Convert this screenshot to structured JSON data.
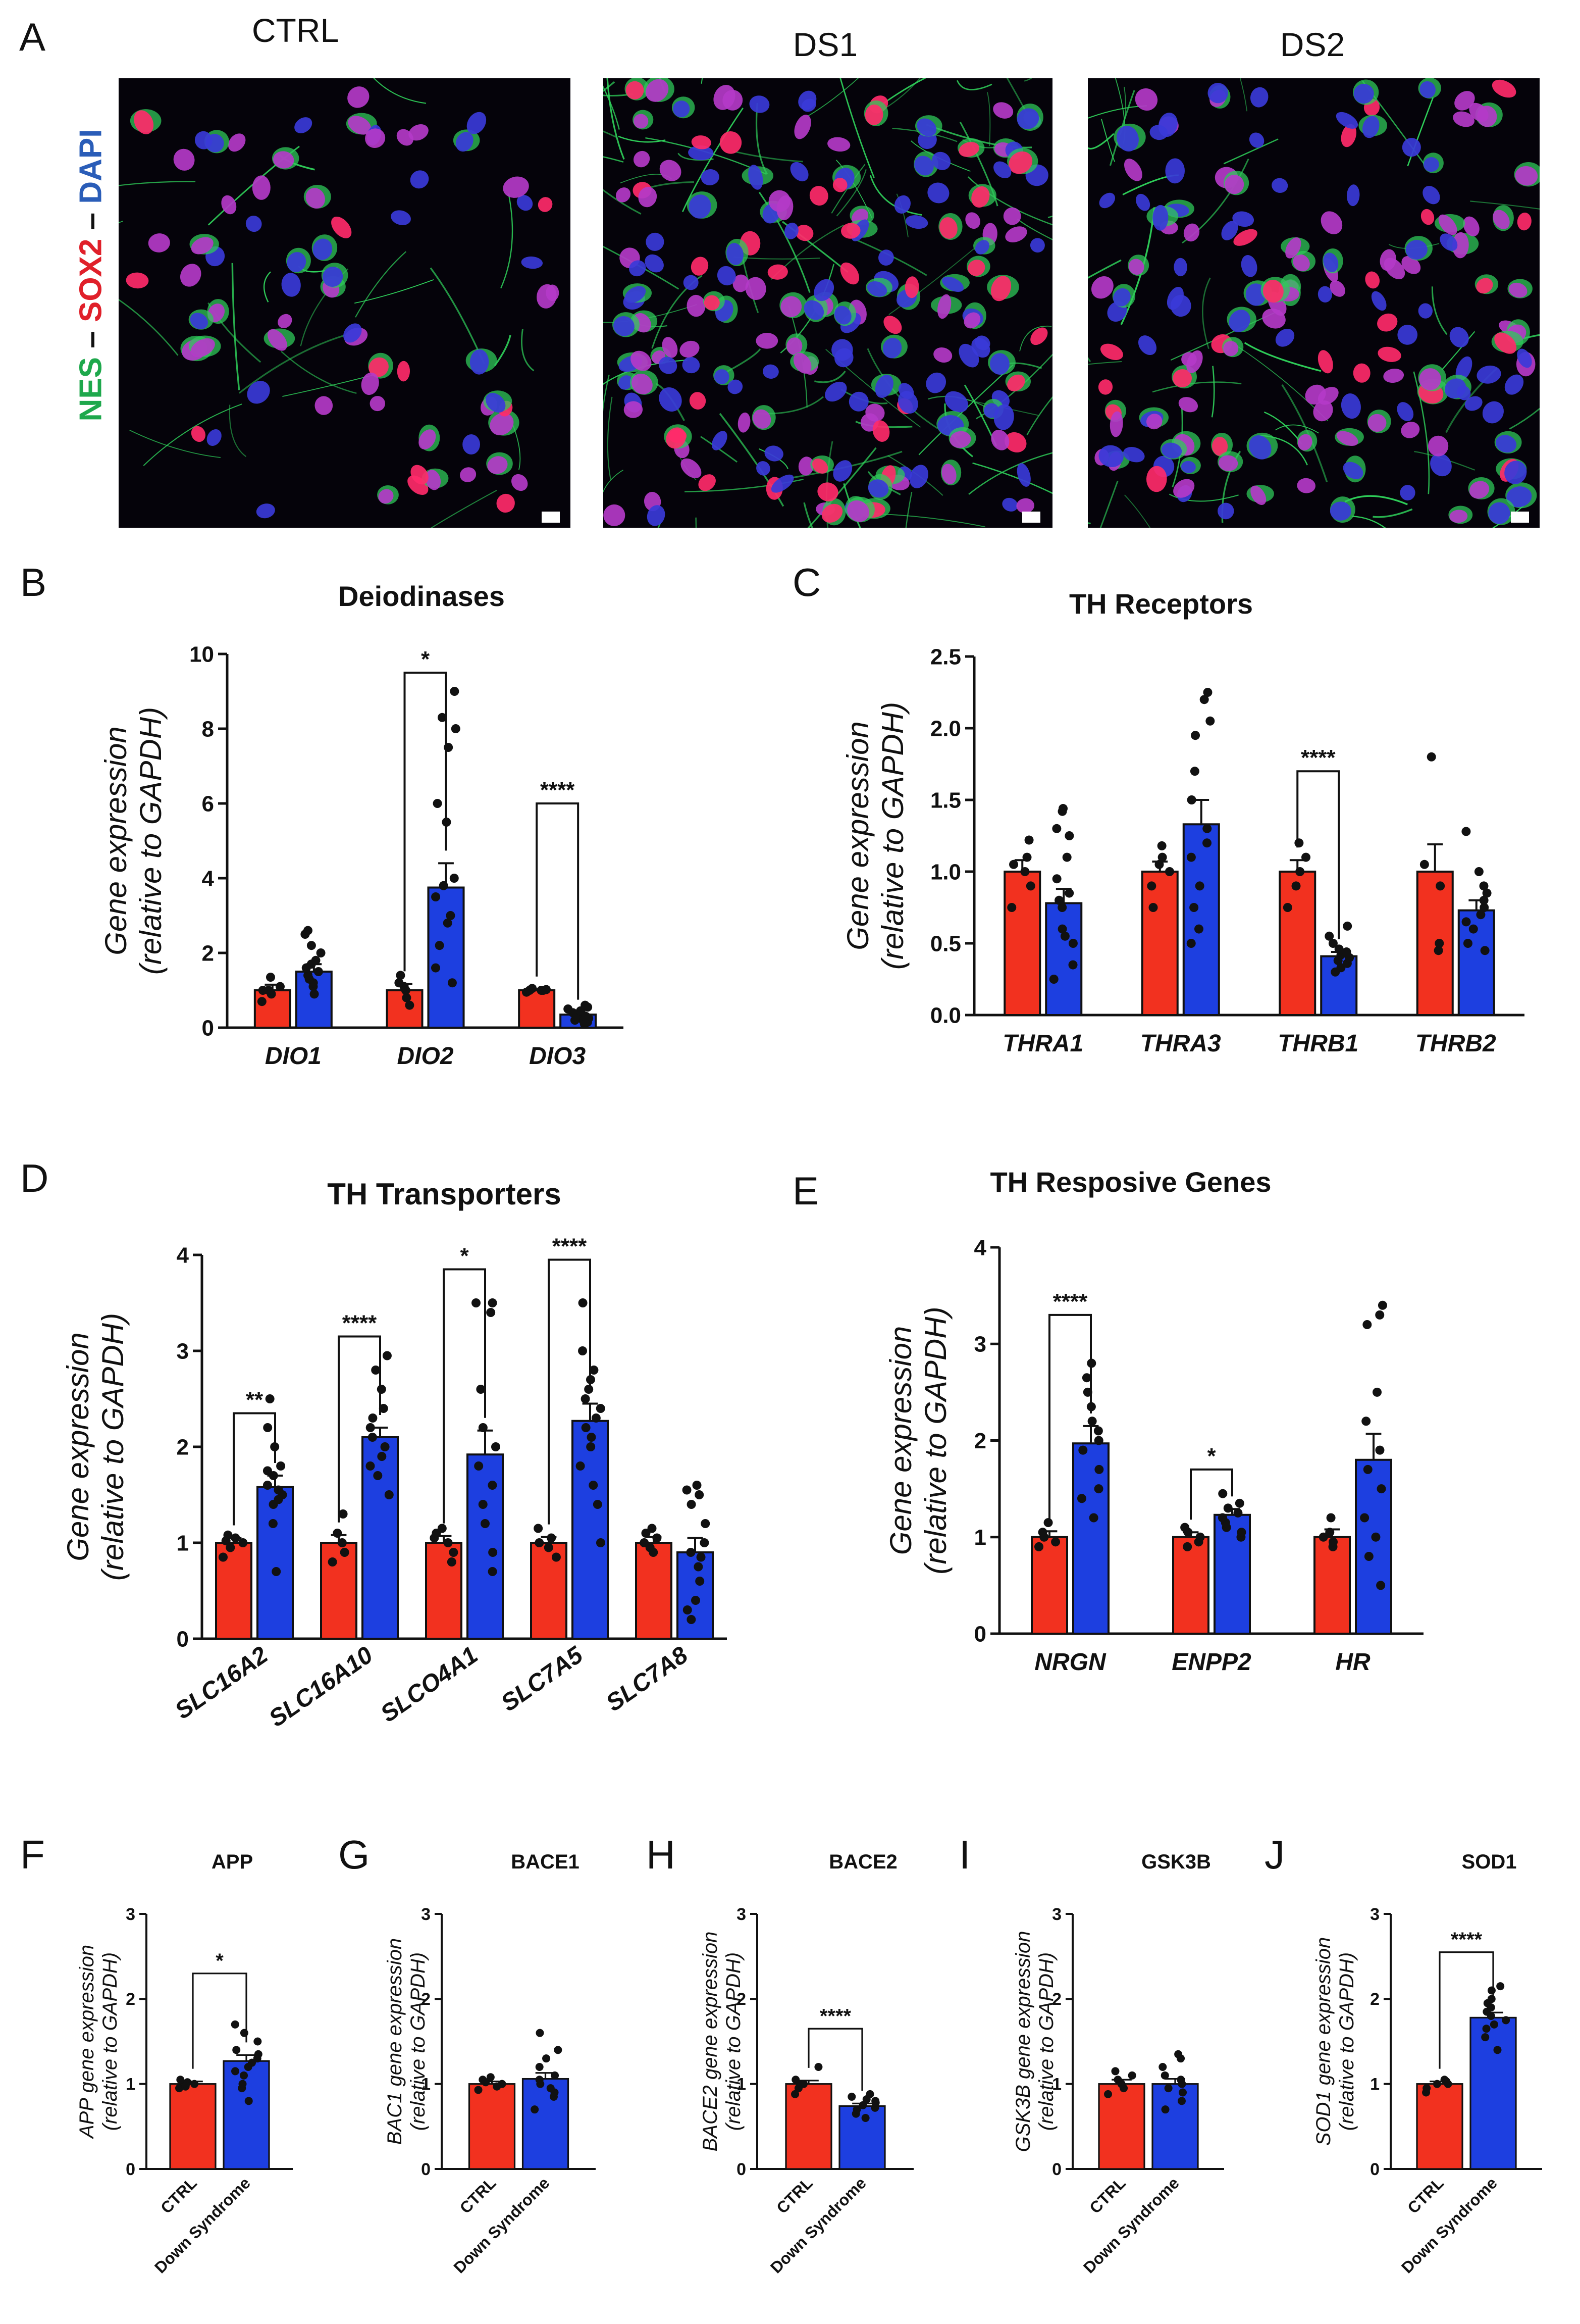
{
  "panel_a": {
    "letter": "A",
    "images": [
      {
        "title": "CTRL",
        "desc": "confocal image CTRL"
      },
      {
        "title": "DS1",
        "desc": "confocal image DS1"
      },
      {
        "title": "DS2",
        "desc": "confocal image DS2"
      }
    ],
    "stain_label": {
      "nes": "NES",
      "sox2": "SOX2",
      "dapi": "DAPI",
      "sep": " – "
    }
  },
  "colors": {
    "ctrl": "#f2311f",
    "ds": "#1d3fe0",
    "nes": "#1ea84c",
    "sox2": "#e0202a",
    "dapi": "#2a5db8"
  },
  "chart_data": [
    {
      "id": "B",
      "letter": "B",
      "type": "bar",
      "title": "Deiodinases",
      "ylabel": [
        "Gene expression",
        "(relative to GAPDH)"
      ],
      "ylim": [
        0,
        10
      ],
      "yticks": [
        "0",
        "2",
        "4",
        "6",
        "8",
        "10"
      ],
      "categories": [
        "DIO1",
        "DIO2",
        "DIO3"
      ],
      "series": [
        {
          "name": "CTRL",
          "values": [
            1.0,
            1.0,
            1.0
          ],
          "sem": [
            0.15,
            0.17,
            0.03
          ]
        },
        {
          "name": "Down Syndrome",
          "values": [
            1.5,
            3.75,
            0.35
          ],
          "sem": [
            0.2,
            0.65,
            0.06
          ]
        }
      ],
      "points": [
        [
          [
            0.7,
            0.9,
            1.0,
            1.0,
            1.1,
            1.35
          ],
          [
            0.9,
            1.1,
            1.2,
            1.3,
            1.4,
            1.5,
            1.6,
            1.7,
            1.8,
            2.0,
            2.2,
            2.5,
            2.6
          ]
        ],
        [
          [
            0.6,
            0.8,
            1.0,
            1.1,
            1.2,
            1.4
          ],
          [
            1.2,
            1.6,
            2.2,
            2.8,
            3.0,
            3.5,
            3.8,
            4.0,
            5.5,
            6.0,
            7.5,
            8.0,
            8.3,
            9.0
          ]
        ],
        [
          [
            0.95,
            1.0,
            1.0,
            1.02,
            1.05,
            1.0
          ],
          [
            0.1,
            0.15,
            0.2,
            0.25,
            0.3,
            0.35,
            0.4,
            0.45,
            0.5,
            0.55,
            0.6,
            0.2,
            0.3
          ]
        ]
      ],
      "significance": [
        {
          "category": 1,
          "label": "*",
          "y": 9.5
        },
        {
          "category": 2,
          "label": "****",
          "y": 6.0
        }
      ]
    },
    {
      "id": "C",
      "letter": "C",
      "type": "bar",
      "title": "TH Receptors",
      "ylabel": [
        "Gene expression",
        "(relative to GAPDH)"
      ],
      "ylim": [
        0,
        2.5
      ],
      "yticks": [
        "0.0",
        "0.5",
        "1.0",
        "1.5",
        "2.0",
        "2.5"
      ],
      "categories": [
        "THRA1",
        "THRA3",
        "THRB1",
        "THRB2"
      ],
      "series": [
        {
          "name": "CTRL",
          "values": [
            1.0,
            1.0,
            1.0,
            1.0
          ],
          "sem": [
            0.08,
            0.07,
            0.08,
            0.19
          ]
        },
        {
          "name": "Down Syndrome",
          "values": [
            0.78,
            1.33,
            0.41,
            0.73
          ],
          "sem": [
            0.1,
            0.17,
            0.03,
            0.07
          ]
        }
      ],
      "points": [
        [
          [
            0.75,
            0.9,
            1.0,
            1.05,
            1.1,
            1.22
          ],
          [
            0.25,
            0.35,
            0.5,
            0.55,
            0.6,
            0.75,
            0.8,
            0.85,
            0.95,
            1.1,
            1.25,
            1.3,
            1.42,
            1.44
          ]
        ],
        [
          [
            0.75,
            0.9,
            1.0,
            1.05,
            1.1,
            1.18
          ],
          [
            0.5,
            0.6,
            0.75,
            0.9,
            1.1,
            1.2,
            1.3,
            1.5,
            1.7,
            1.95,
            2.05,
            2.2,
            2.25
          ]
        ],
        [
          [
            0.75,
            0.9,
            1.0,
            1.1,
            1.2
          ],
          [
            0.3,
            0.33,
            0.36,
            0.38,
            0.4,
            0.42,
            0.44,
            0.46,
            0.5,
            0.55,
            0.62
          ]
        ],
        [
          [
            0.45,
            0.5,
            0.9,
            1.05,
            1.8
          ],
          [
            0.45,
            0.5,
            0.6,
            0.65,
            0.7,
            0.75,
            0.8,
            0.85,
            0.9,
            1.0,
            1.28
          ]
        ]
      ],
      "significance": [
        {
          "category": 2,
          "label": "****",
          "y": 1.7
        }
      ]
    },
    {
      "id": "D",
      "letter": "D",
      "type": "bar",
      "title": "TH Transporters",
      "ylabel": [
        "Gene expression",
        "(relative to GAPDH)"
      ],
      "ylim": [
        0,
        4
      ],
      "yticks": [
        "0",
        "1",
        "2",
        "3",
        "4"
      ],
      "categories": [
        "SLC16A2",
        "SLC16A10",
        "SLCO4A1",
        "SLC7A5",
        "SLC7A8"
      ],
      "series": [
        {
          "name": "CTRL",
          "values": [
            1.0,
            1.0,
            1.0,
            1.0,
            1.0
          ],
          "sem": [
            0.05,
            0.08,
            0.07,
            0.06,
            0.06
          ]
        },
        {
          "name": "Down Syndrome",
          "values": [
            1.58,
            2.1,
            1.92,
            2.27,
            0.9
          ],
          "sem": [
            0.12,
            0.1,
            0.25,
            0.18,
            0.15
          ]
        }
      ],
      "points": [
        [
          [
            0.85,
            0.95,
            1.0,
            1.02,
            1.05,
            1.08
          ],
          [
            0.7,
            1.2,
            1.4,
            1.5,
            1.55,
            1.6,
            1.7,
            1.75,
            1.8,
            2.0,
            2.2,
            2.5,
            1.45
          ]
        ],
        [
          [
            0.8,
            0.9,
            1.0,
            1.1,
            1.3
          ],
          [
            1.5,
            1.7,
            1.8,
            1.9,
            2.0,
            2.1,
            2.2,
            2.3,
            2.4,
            2.6,
            2.8,
            2.95
          ]
        ],
        [
          [
            0.8,
            0.9,
            1.0,
            1.05,
            1.1,
            1.15
          ],
          [
            0.7,
            0.9,
            1.2,
            1.4,
            1.6,
            1.8,
            2.0,
            2.2,
            2.6,
            3.4,
            3.5,
            3.5
          ]
        ],
        [
          [
            0.85,
            0.95,
            1.0,
            1.05,
            1.15
          ],
          [
            1.0,
            1.4,
            1.6,
            1.8,
            2.0,
            2.1,
            2.2,
            2.3,
            2.4,
            2.5,
            2.6,
            2.7,
            2.8,
            3.0,
            3.5
          ]
        ],
        [
          [
            0.9,
            0.95,
            1.0,
            1.05,
            1.1,
            1.15
          ],
          [
            0.2,
            0.3,
            0.4,
            0.6,
            0.75,
            0.85,
            0.9,
            1.0,
            1.2,
            1.4,
            1.5,
            1.55,
            1.6
          ]
        ]
      ],
      "significance": [
        {
          "category": 0,
          "label": "**",
          "y": 2.35
        },
        {
          "category": 1,
          "label": "****",
          "y": 3.15
        },
        {
          "category": 2,
          "label": "*",
          "y": 3.85
        },
        {
          "category": 3,
          "label": "****",
          "y": 3.95
        }
      ]
    },
    {
      "id": "E",
      "letter": "E",
      "type": "bar",
      "title": "TH Resposive Genes",
      "ylabel": [
        "Gene expression",
        "(relative to GAPDH)"
      ],
      "ylim": [
        0,
        4
      ],
      "yticks": [
        "0",
        "1",
        "2",
        "3",
        "4"
      ],
      "categories": [
        "NRGN",
        "ENPP2",
        "HR"
      ],
      "series": [
        {
          "name": "CTRL",
          "values": [
            1.0,
            1.0,
            1.0
          ],
          "sem": [
            0.06,
            0.05,
            0.08
          ]
        },
        {
          "name": "Down Syndrome",
          "values": [
            1.97,
            1.23,
            1.8
          ],
          "sem": [
            0.18,
            0.06,
            0.27
          ]
        }
      ],
      "points": [
        [
          [
            0.9,
            0.95,
            1.0,
            1.05,
            1.15
          ],
          [
            1.2,
            1.4,
            1.5,
            1.7,
            1.9,
            2.0,
            2.1,
            2.2,
            2.35,
            2.5,
            2.65,
            2.8
          ]
        ],
        [
          [
            0.9,
            0.95,
            1.0,
            1.05,
            1.1
          ],
          [
            1.0,
            1.05,
            1.1,
            1.15,
            1.2,
            1.25,
            1.3,
            1.35,
            1.45
          ]
        ],
        [
          [
            0.9,
            0.95,
            1.0,
            1.05,
            1.2
          ],
          [
            0.5,
            0.8,
            1.0,
            1.2,
            1.5,
            1.7,
            1.9,
            2.2,
            2.5,
            3.2,
            3.3,
            3.4
          ]
        ]
      ],
      "significance": [
        {
          "category": 0,
          "label": "****",
          "y": 3.3
        },
        {
          "category": 1,
          "label": "*",
          "y": 1.7
        }
      ]
    },
    {
      "id": "F",
      "letter": "F",
      "type": "bar",
      "title": "APP",
      "ylabel": [
        "APP gene expression",
        "(relative to GAPDH)"
      ],
      "ylim": [
        0,
        3
      ],
      "yticks": [
        "0",
        "1",
        "2",
        "3"
      ],
      "categories": [
        "CTRL",
        "Down Syndrome"
      ],
      "values": [
        1.0,
        1.27
      ],
      "sem": [
        0.03,
        0.07
      ],
      "points": [
        [
          0.95,
          0.97,
          1.0,
          1.0,
          1.02,
          1.05
        ],
        [
          0.8,
          0.95,
          1.0,
          1.1,
          1.15,
          1.2,
          1.25,
          1.3,
          1.35,
          1.4,
          1.5,
          1.6,
          1.7
        ]
      ],
      "significance": [
        {
          "label": "*",
          "y": 2.3
        }
      ]
    },
    {
      "id": "G",
      "letter": "G",
      "type": "bar",
      "title": "BACE1",
      "ylabel": [
        "BAC1 gene expression",
        "(relative to GAPDH)"
      ],
      "ylim": [
        0,
        3
      ],
      "yticks": [
        "0",
        "1",
        "2",
        "3"
      ],
      "categories": [
        "CTRL",
        "Down Syndrome"
      ],
      "values": [
        1.0,
        1.06
      ],
      "sem": [
        0.03,
        0.07
      ],
      "points": [
        [
          0.93,
          0.97,
          1.0,
          1.02,
          1.05,
          1.08
        ],
        [
          0.7,
          0.85,
          0.9,
          0.95,
          1.0,
          1.05,
          1.1,
          1.2,
          1.3,
          1.4,
          1.6
        ]
      ],
      "significance": []
    },
    {
      "id": "H",
      "letter": "H",
      "type": "bar",
      "title": "BACE2",
      "ylabel": [
        "BACE2 gene expression",
        "(relative to GAPDH)"
      ],
      "ylim": [
        0,
        3
      ],
      "yticks": [
        "0",
        "1",
        "2",
        "3"
      ],
      "categories": [
        "CTRL",
        "Down Syndrome"
      ],
      "values": [
        1.0,
        0.74
      ],
      "sem": [
        0.04,
        0.03
      ],
      "points": [
        [
          0.88,
          0.95,
          1.0,
          1.0,
          1.05,
          1.2
        ],
        [
          0.6,
          0.65,
          0.7,
          0.72,
          0.75,
          0.78,
          0.8,
          0.82,
          0.85,
          0.88
        ]
      ],
      "significance": [
        {
          "label": "****",
          "y": 1.65
        }
      ]
    },
    {
      "id": "I",
      "letter": "I",
      "type": "bar",
      "title": "GSK3B",
      "ylabel": [
        "GSK3B gene expression",
        "(relative to GAPDH)"
      ],
      "ylim": [
        0,
        3
      ],
      "yticks": [
        "0",
        "1",
        "2",
        "3"
      ],
      "categories": [
        "CTRL",
        "Down Syndrome"
      ],
      "values": [
        1.0,
        1.0
      ],
      "sem": [
        0.05,
        0.06
      ],
      "points": [
        [
          0.88,
          0.95,
          1.0,
          1.05,
          1.1,
          1.15
        ],
        [
          0.7,
          0.8,
          0.9,
          0.95,
          1.0,
          1.05,
          1.1,
          1.2,
          1.3,
          1.35
        ]
      ],
      "significance": []
    },
    {
      "id": "J",
      "letter": "J",
      "type": "bar",
      "title": "SOD1",
      "ylabel": [
        "SOD1 gene expression",
        "(relative to GAPDH)"
      ],
      "ylim": [
        0,
        3
      ],
      "yticks": [
        "0",
        "1",
        "2",
        "3"
      ],
      "categories": [
        "CTRL",
        "Down Syndrome"
      ],
      "values": [
        1.0,
        1.78
      ],
      "sem": [
        0.03,
        0.06
      ],
      "points": [
        [
          0.9,
          0.95,
          1.0,
          1.0,
          1.03,
          1.05
        ],
        [
          1.4,
          1.55,
          1.65,
          1.7,
          1.75,
          1.8,
          1.85,
          1.9,
          1.95,
          2.0,
          2.1,
          2.15
        ]
      ],
      "significance": [
        {
          "label": "****",
          "y": 2.55
        }
      ]
    }
  ]
}
